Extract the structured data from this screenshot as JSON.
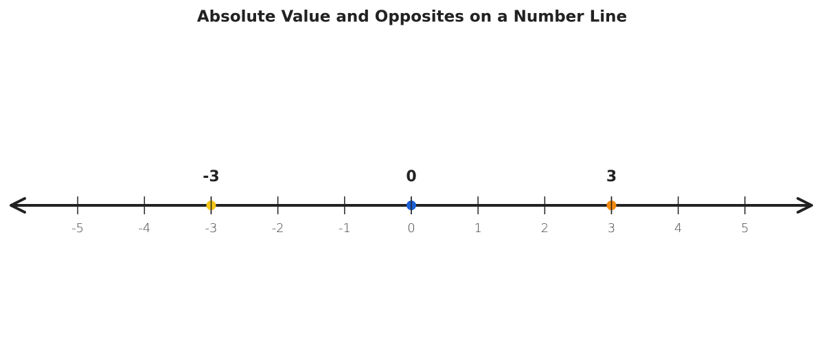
{
  "chart_data": {
    "type": "number-line",
    "title": "Absolute Value and Opposites on a Number Line",
    "x": [
      -3,
      0,
      3
    ],
    "colors": [
      "#f5c518",
      "#1a5fd6",
      "#f28a0f"
    ],
    "xlim": [
      -6,
      6
    ],
    "xticks": [
      -5,
      -4,
      -3,
      -2,
      -1,
      0,
      1,
      2,
      3,
      4,
      5
    ]
  }
}
